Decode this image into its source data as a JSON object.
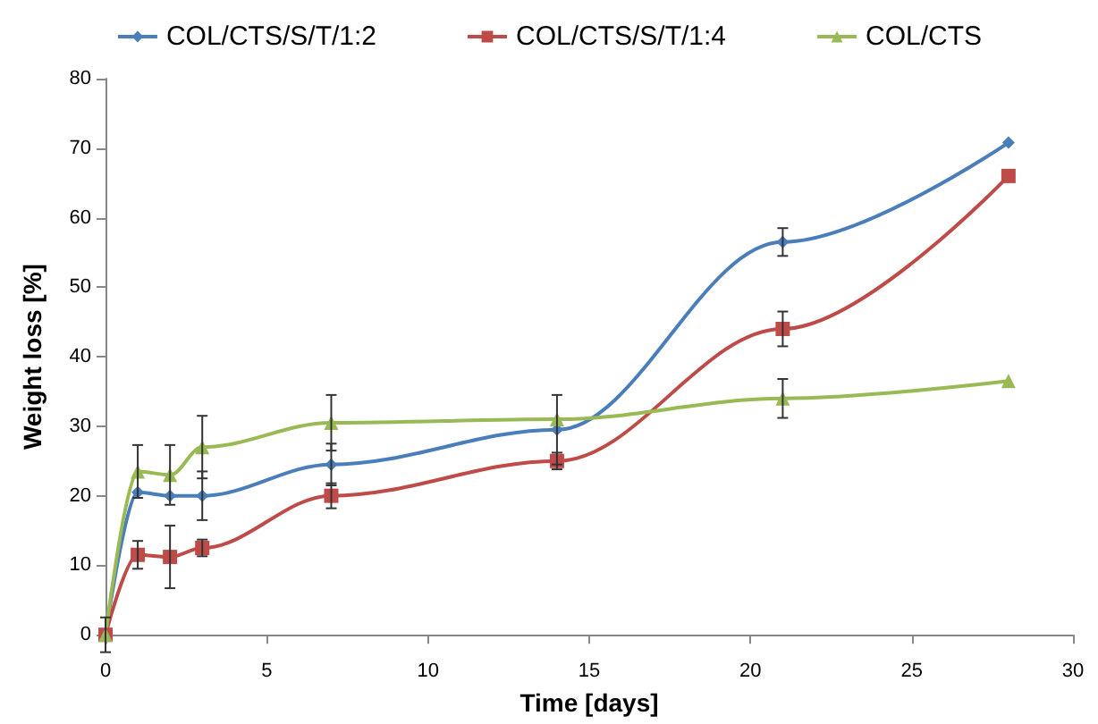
{
  "chart_data": {
    "type": "line",
    "xlabel": "Time [days]",
    "ylabel": "Weight loss [%]",
    "x": [
      0,
      1,
      2,
      3,
      7,
      14,
      21,
      28
    ],
    "xlim": [
      0,
      30
    ],
    "xticks": [
      0,
      5,
      10,
      15,
      20,
      25,
      30
    ],
    "ylim": [
      0,
      80
    ],
    "yticks": [
      0,
      10,
      20,
      30,
      40,
      50,
      60,
      70,
      80
    ],
    "grid": false,
    "legend": "top",
    "series": [
      {
        "name": "COL/CTS/S/T/1:2",
        "color": "#4a7ebb",
        "marker": "diamond",
        "values": [
          0,
          20.5,
          20,
          20,
          24.5,
          29.5,
          56.5,
          70.8
        ],
        "errors": [
          2.5,
          null,
          null,
          3.5,
          3,
          5,
          2,
          null
        ]
      },
      {
        "name": "COL/CTS/S/T/1:4",
        "color": "#be4b48",
        "marker": "square",
        "values": [
          0,
          11.5,
          11.2,
          12.5,
          20,
          25,
          44,
          66
        ],
        "errors": [
          null,
          2,
          4.5,
          1.2,
          1.8,
          1.2,
          2.5,
          null
        ]
      },
      {
        "name": "COL/CTS",
        "color": "#98b954",
        "marker": "triangle",
        "values": [
          0,
          23.5,
          23,
          27,
          30.5,
          31,
          34,
          36.5
        ],
        "errors": [
          null,
          3.8,
          4.3,
          4.5,
          4,
          null,
          2.8,
          null
        ]
      }
    ]
  }
}
